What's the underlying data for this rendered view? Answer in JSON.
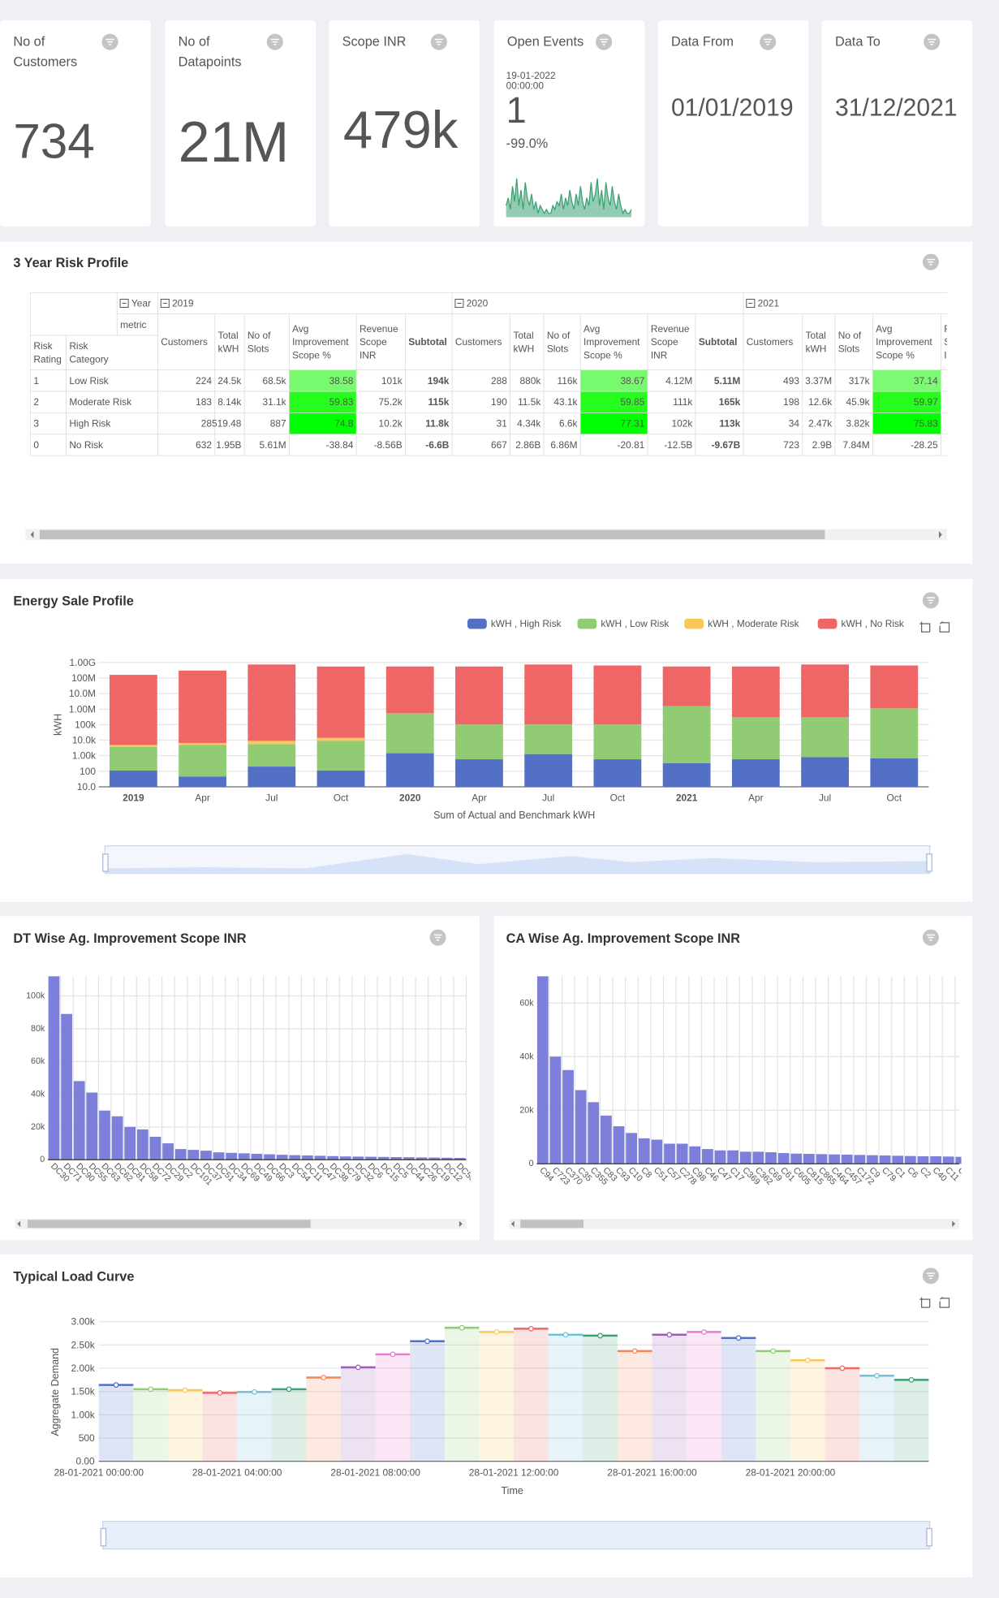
{
  "kpis": [
    {
      "title": "No of Customers",
      "value": "734"
    },
    {
      "title": "No of Datapoints",
      "value": "21M"
    },
    {
      "title": "Scope INR",
      "value": "479k"
    },
    {
      "title": "Open Events",
      "date": "19-01-2022 00:00:00",
      "value": "1",
      "change": "-99.0%",
      "sparkline": {
        "type": "line",
        "color": "#3ba272",
        "ylim": [
          0,
          10
        ],
        "values": [
          3,
          5,
          2,
          8,
          4,
          10,
          3,
          7,
          2,
          9,
          5,
          3,
          6,
          2,
          4,
          1,
          3,
          2,
          1,
          2,
          1,
          1,
          3,
          2,
          4,
          3,
          6,
          2,
          5,
          3,
          7,
          4,
          2,
          6,
          3,
          8,
          4,
          2,
          5,
          3,
          9,
          4,
          6,
          10,
          3,
          7,
          2,
          9,
          5,
          3,
          8,
          4,
          2,
          6,
          3,
          1,
          2,
          1,
          1,
          2
        ]
      }
    },
    {
      "title": "Data From",
      "value": "01/01/2019"
    },
    {
      "title": "Data To",
      "value": "31/12/2021"
    }
  ],
  "risk_table": {
    "title": "3 Year Risk Profile",
    "year_header": "Year",
    "metric_header": "metric",
    "row_headers": [
      "Risk Rating",
      "Risk Category"
    ],
    "columns": [
      "Customers",
      "Total kWH",
      "No of Slots",
      "Avg Improvement Scope %",
      "Revenue Scope INR",
      "Subtotal"
    ],
    "years": [
      "2019",
      "2020",
      "2021"
    ],
    "rows": [
      {
        "rating": "1",
        "category": "Low Risk",
        "cells": [
          [
            "224",
            "24.5k",
            "68.5k",
            "38.58",
            "101k",
            "194k"
          ],
          [
            "288",
            "880k",
            "116k",
            "38.67",
            "4.12M",
            "5.11M"
          ],
          [
            "493",
            "3.37M",
            "317k",
            "37.14"
          ]
        ]
      },
      {
        "rating": "2",
        "category": "Moderate Risk",
        "cells": [
          [
            "183",
            "8.14k",
            "31.1k",
            "59.83",
            "75.2k",
            "115k"
          ],
          [
            "190",
            "11.5k",
            "43.1k",
            "59.85",
            "111k",
            "165k"
          ],
          [
            "198",
            "12.6k",
            "45.9k",
            "59.97"
          ]
        ]
      },
      {
        "rating": "3",
        "category": "High Risk",
        "cells": [
          [
            "28",
            "519.48",
            "887",
            "74.8",
            "10.2k",
            "11.8k"
          ],
          [
            "31",
            "4.34k",
            "6.6k",
            "77.31",
            "102k",
            "113k"
          ],
          [
            "34",
            "2.47k",
            "3.82k",
            "75.83"
          ]
        ]
      },
      {
        "rating": "0",
        "category": "No Risk",
        "cells": [
          [
            "632",
            "1.95B",
            "5.61M",
            "-38.84",
            "-8.56B",
            "-6.6B"
          ],
          [
            "667",
            "2.86B",
            "6.86M",
            "-20.81",
            "-12.5B",
            "-9.67B"
          ],
          [
            "723",
            "2.9B",
            "7.84M",
            "-28.25"
          ]
        ]
      }
    ]
  },
  "energy_chart": {
    "type": "bar",
    "stacked": true,
    "log_scale": true,
    "title": "Energy Sale Profile",
    "x_label": "Sum of Actual and Benchmark kWH",
    "y_label": "kWH",
    "categories": [
      "2019",
      "Apr",
      "Jul",
      "Oct",
      "2020",
      "Apr",
      "Jul",
      "Oct",
      "2021",
      "Apr",
      "Jul",
      "Oct"
    ],
    "series": [
      {
        "name": "kWH , High Risk",
        "color": "#5470c6",
        "values": [
          110,
          46,
          200,
          112,
          1450,
          590,
          1270,
          590,
          325,
          590,
          800,
          690
        ]
      },
      {
        "name": "kWH , Low Risk",
        "color": "#91cc75",
        "values": [
          3500,
          4850,
          5400,
          8900,
          520000,
          100000,
          100000,
          100000,
          1500000,
          290000,
          290000,
          1100000
        ]
      },
      {
        "name": "kWH , Moderate Risk",
        "color": "#fac858",
        "values": [
          1300,
          1700,
          3400,
          5000,
          10000,
          2000,
          2000,
          2000,
          20000,
          5000,
          5000,
          15000
        ]
      },
      {
        "name": "kWH , No Risk",
        "color": "#ee6666",
        "values": [
          160000000,
          300000000,
          740000000,
          550000000,
          550000000,
          550000000,
          740000000,
          640000000,
          550000000,
          550000000,
          740000000,
          640000000
        ]
      }
    ],
    "ylim": [
      10,
      1000000000
    ],
    "yticks": [
      {
        "value": 10,
        "label": "10.0"
      },
      100,
      {
        "value": 1000,
        "label": "1.00k"
      },
      {
        "value": 10000,
        "label": "10.0k"
      },
      {
        "value": 100000,
        "label": "100k"
      },
      {
        "value": 1000000,
        "label": "1.00M"
      },
      {
        "value": 10000000,
        "label": "10.0M"
      },
      {
        "value": 100000000,
        "label": "100M"
      },
      {
        "value": 1000000000,
        "label": "1.00G"
      }
    ],
    "legend": "top-right",
    "grid": true
  },
  "dt_chart": {
    "type": "bar",
    "title": "DT Wise Ag. Improvement Scope INR",
    "color": "#7d80da",
    "categories": [
      "DC30",
      "DC71",
      "DC90",
      "DC55",
      "DC63",
      "DC62",
      "DC81",
      "DC58",
      "DC72",
      "DC29",
      "DC2",
      "DC101",
      "DC37",
      "DC51",
      "DC34",
      "DC69",
      "DC49",
      "DC66",
      "DC3",
      "DC54",
      "DC11",
      "DC47",
      "DC38",
      "DC79",
      "DC32",
      "DC6",
      "DC15",
      "DC5",
      "DC44",
      "DC26",
      "DC19",
      "DC12",
      "DC50"
    ],
    "values": [
      112000,
      89000,
      48000,
      41000,
      30000,
      26500,
      20000,
      18500,
      14000,
      10000,
      6500,
      6000,
      5500,
      4500,
      4200,
      3900,
      3600,
      3300,
      3000,
      2800,
      2600,
      2400,
      2200,
      2000,
      1900,
      1800,
      1700,
      1600,
      1500,
      1400,
      1300,
      1200,
      1100
    ],
    "ylim": [
      0,
      112000
    ],
    "yticks": [
      0,
      {
        "value": 20000,
        "label": "20k"
      },
      {
        "value": 40000,
        "label": "40k"
      },
      {
        "value": 60000,
        "label": "60k"
      },
      {
        "value": 80000,
        "label": "80k"
      },
      {
        "value": 100000,
        "label": "100k"
      }
    ],
    "grid": true
  },
  "ca_chart": {
    "type": "bar",
    "title": "CA Wise Ag. Improvement Scope INR",
    "color": "#7d80da",
    "categories": [
      "C94",
      "C723",
      "C370",
      "C35",
      "C355",
      "C83",
      "C93",
      "C10",
      "C8",
      "C51",
      "C57",
      "C278",
      "C98",
      "C46",
      "C47",
      "C17",
      "C369",
      "C362",
      "C69",
      "C61",
      "C605",
      "C815",
      "C865",
      "C464",
      "C457",
      "C172",
      "C9",
      "C79",
      "C1",
      "C6",
      "C2",
      "C40",
      "C11",
      "C5"
    ],
    "values": [
      70000,
      40000,
      35000,
      27500,
      23000,
      18000,
      14000,
      11500,
      9500,
      9000,
      7500,
      7500,
      6500,
      5500,
      5000,
      5000,
      4500,
      4500,
      4300,
      4000,
      3800,
      3700,
      3600,
      3500,
      3400,
      3300,
      3200,
      3100,
      3000,
      2900,
      2800,
      2800,
      2700,
      2600
    ],
    "ylim": [
      0,
      70000
    ],
    "yticks": [
      0,
      {
        "value": 20000,
        "label": "20k"
      },
      {
        "value": 40000,
        "label": "40k"
      },
      {
        "value": 60000,
        "label": "60k"
      }
    ],
    "grid": true
  },
  "load_curve": {
    "type": "bar",
    "title": "Typical Load Curve",
    "x_label": "Time",
    "y_label": "Aggregate Demand",
    "categories": [
      "28-01-2021 00:00:00",
      null,
      null,
      null,
      "28-01-2021 04:00:00",
      null,
      null,
      null,
      "28-01-2021 08:00:00",
      null,
      null,
      null,
      "28-01-2021 12:00:00",
      null,
      null,
      null,
      "28-01-2021 16:00:00",
      null,
      null,
      null,
      "28-01-2021 20:00:00",
      null,
      null,
      null
    ],
    "values": [
      1640,
      1550,
      1530,
      1470,
      1490,
      1550,
      1800,
      2020,
      2300,
      2580,
      2870,
      2780,
      2850,
      2720,
      2700,
      2370,
      2720,
      2780,
      2650,
      2370,
      2170,
      2000,
      1840,
      1750
    ],
    "palette": [
      "#5470c6",
      "#91cc75",
      "#fac858",
      "#ee6666",
      "#73c0de",
      "#3ba272",
      "#fc8452",
      "#9a60b4",
      "#ea7ccc"
    ],
    "ylim": [
      0,
      3000
    ],
    "yticks": [
      {
        "value": 0,
        "label": "0.00"
      },
      500,
      {
        "value": 1000,
        "label": "1.00k"
      },
      {
        "value": 1500,
        "label": "1.50k"
      },
      {
        "value": 2000,
        "label": "2.00k"
      },
      {
        "value": 2500,
        "label": "2.50k"
      },
      {
        "value": 3000,
        "label": "3.00k"
      }
    ],
    "grid": true
  }
}
